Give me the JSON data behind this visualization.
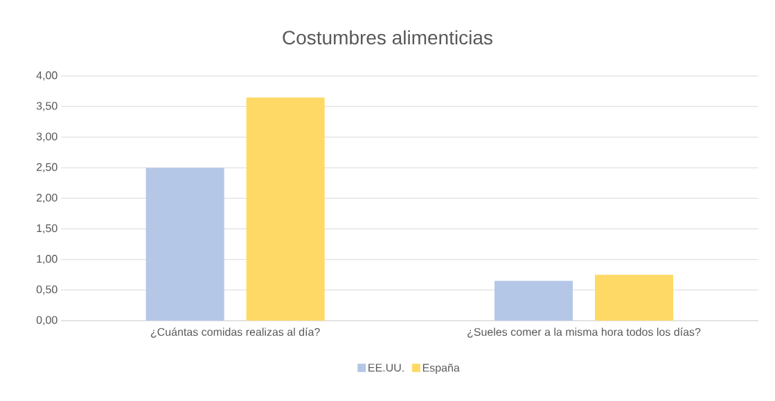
{
  "chart_data": {
    "type": "bar",
    "title": "Costumbres alimenticias",
    "categories": [
      "¿Cuántas comidas realizas al día?",
      "¿Sueles comer a la misma hora todos los días?"
    ],
    "series": [
      {
        "name": "EE.UU.",
        "color": "#b4c7e7",
        "values": [
          2.5,
          0.65
        ]
      },
      {
        "name": "España",
        "color": "#ffd966",
        "values": [
          3.65,
          0.75
        ]
      }
    ],
    "ylim": [
      0,
      4
    ],
    "yticks": [
      {
        "value": 0,
        "label": "0,00"
      },
      {
        "value": 0.5,
        "label": "0,50"
      },
      {
        "value": 1,
        "label": "1,00"
      },
      {
        "value": 1.5,
        "label": "1,50"
      },
      {
        "value": 2,
        "label": "2,00"
      },
      {
        "value": 2.5,
        "label": "2,50"
      },
      {
        "value": 3,
        "label": "3,00"
      },
      {
        "value": 3.5,
        "label": "3,50"
      },
      {
        "value": 4,
        "label": "4,00"
      }
    ],
    "grid": "y",
    "legend": "bottom"
  }
}
